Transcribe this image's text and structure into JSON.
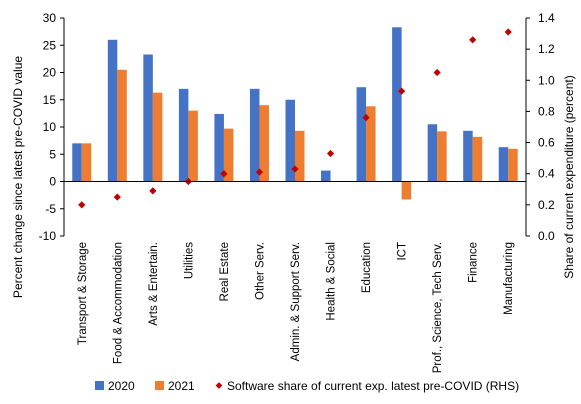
{
  "chart_data": {
    "type": "bar",
    "title": "",
    "categories": [
      "Transport & Storage",
      "Food & Accommodation",
      "Arts & Entertain.",
      "Utilities",
      "Real Estate",
      "Other Serv.",
      "Admin. & Support Serv.",
      "Health & Social",
      "Education",
      "ICT",
      "Prof., Science, Tech Serv.",
      "Finance",
      "Manufacturing"
    ],
    "series": [
      {
        "name": "2020",
        "type": "bar",
        "axis": "left",
        "color": "#4472C4",
        "values": [
          7.0,
          26.0,
          23.3,
          17.0,
          12.4,
          17.0,
          15.0,
          2.0,
          17.3,
          28.3,
          10.5,
          9.3,
          6.3
        ]
      },
      {
        "name": "2021",
        "type": "bar",
        "axis": "left",
        "color": "#ED7D31",
        "values": [
          7.0,
          20.5,
          16.3,
          13.0,
          9.7,
          14.0,
          9.3,
          0.0,
          13.8,
          -3.3,
          9.2,
          8.2,
          6.0
        ]
      },
      {
        "name": "Software share of current exp. latest pre-COVID (RHS)",
        "type": "scatter",
        "axis": "right",
        "color": "#C00000",
        "values": [
          0.2,
          0.25,
          0.29,
          0.35,
          0.4,
          0.41,
          0.43,
          0.53,
          0.76,
          0.93,
          1.05,
          1.26,
          1.31
        ]
      }
    ],
    "ylabel": "Percent change since latest pre-COVID value",
    "y2label": "Share of current expenditure (percent)",
    "ylim": [
      -10,
      30
    ],
    "yticks": [
      "-10",
      "-5",
      "0",
      "5",
      "10",
      "15",
      "20",
      "25",
      "30"
    ],
    "y2lim": [
      0,
      1.4
    ],
    "y2ticks": [
      "0.0",
      "0.2",
      "0.4",
      "0.6",
      "0.8",
      "1.0",
      "1.2",
      "1.4"
    ],
    "grid": false,
    "legend": "bottom"
  }
}
